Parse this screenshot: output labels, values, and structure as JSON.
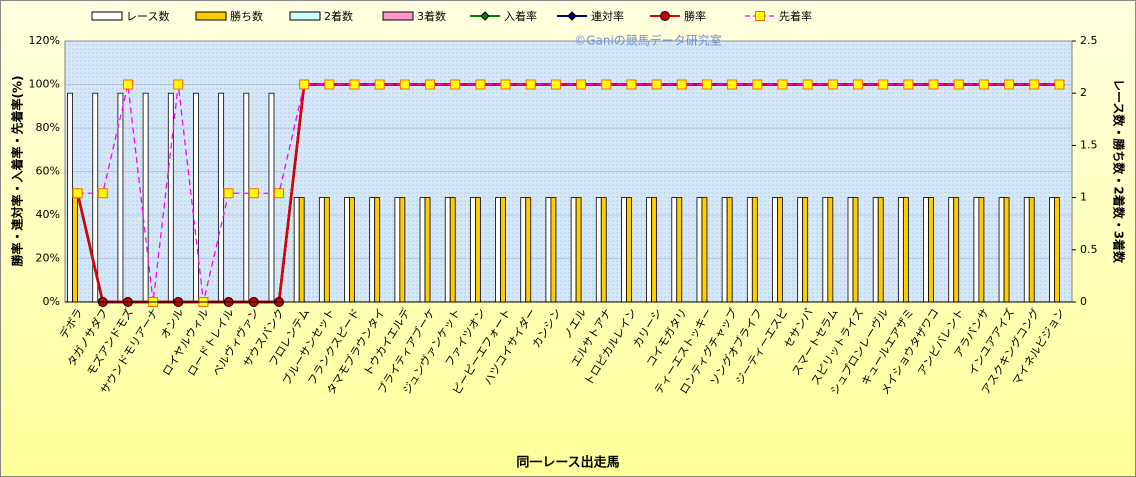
{
  "chart_data": {
    "type": "combo",
    "watermark": "©Ganiの競馬データ研究室",
    "ylabel": "勝率・連対率・入着率・先着率(%)",
    "y2label": "レース数・勝ち数・2着数・3着数",
    "xlabel": "同一レース出走馬",
    "categories": [
      "デボラ",
      "タガノサダフ",
      "モズアンドモズ",
      "サウンドモリアーナ",
      "オンル",
      "ロイヤルウィル",
      "ロードトレイル",
      "ベルヴィヴァン",
      "サウスバンク",
      "フロレンテム",
      "ブルーサンセット",
      "フランクスピード",
      "タマモブラウンタイ",
      "トウカイエルデ",
      "ブライティアブーケ",
      "ジュンヴァンケット",
      "ファイツオン",
      "ピーピーエフォート",
      "ハツコイサイダー",
      "カンシン",
      "ノエル",
      "エルサトアナ",
      "トロピカルレイン",
      "カリーシ",
      "コイモガタリ",
      "ティーエストッキー",
      "ロンティグチャップ",
      "ソングオブライフ",
      "ジーティーエスピ",
      "セサンパ",
      "スマートセラム",
      "スピリットライズ",
      "シュプロンレーヴル",
      "キュールエアザミ",
      "メイショウタザワコ",
      "アンビバレント",
      "アラバンサ",
      "インユアアイズ",
      "アスクキングコング",
      "マイネルビジョン"
    ],
    "ylim": [
      0,
      120
    ],
    "yticks": [
      {
        "value": 0,
        "label": "0%"
      },
      {
        "value": 20,
        "label": "20%"
      },
      {
        "value": 40,
        "label": "40%"
      },
      {
        "value": 60,
        "label": "60%"
      },
      {
        "value": 80,
        "label": "80%"
      },
      {
        "value": 100,
        "label": "100%"
      },
      {
        "value": 120,
        "label": "120%"
      }
    ],
    "y2lim": [
      0,
      2.5
    ],
    "y2ticks": [
      0,
      0.5,
      1,
      1.5,
      2,
      2.5
    ],
    "grid": true,
    "series": [
      {
        "name": "レース数",
        "type": "bar",
        "axis": "y2",
        "color": "#ffffff",
        "values": [
          2,
          2,
          2,
          2,
          2,
          2,
          2,
          2,
          2,
          1,
          1,
          1,
          1,
          1,
          1,
          1,
          1,
          1,
          1,
          1,
          1,
          1,
          1,
          1,
          1,
          1,
          1,
          1,
          1,
          1,
          1,
          1,
          1,
          1,
          1,
          1,
          1,
          1,
          1,
          1
        ]
      },
      {
        "name": "勝ち数",
        "type": "bar",
        "axis": "y2",
        "color": "#ffcc00",
        "values": [
          1,
          0,
          0,
          0,
          0,
          0,
          0,
          0,
          0,
          1,
          1,
          1,
          1,
          1,
          1,
          1,
          1,
          1,
          1,
          1,
          1,
          1,
          1,
          1,
          1,
          1,
          1,
          1,
          1,
          1,
          1,
          1,
          1,
          1,
          1,
          1,
          1,
          1,
          1,
          1
        ]
      },
      {
        "name": "2着数",
        "type": "bar",
        "axis": "y2",
        "color": "#ccffff",
        "values": [
          0,
          0,
          0,
          0,
          0,
          0,
          0,
          0,
          0,
          0,
          0,
          0,
          0,
          0,
          0,
          0,
          0,
          0,
          0,
          0,
          0,
          0,
          0,
          0,
          0,
          0,
          0,
          0,
          0,
          0,
          0,
          0,
          0,
          0,
          0,
          0,
          0,
          0,
          0,
          0
        ]
      },
      {
        "name": "3着数",
        "type": "bar",
        "axis": "y2",
        "color": "#ff99cc",
        "values": [
          0,
          0,
          0,
          0,
          0,
          0,
          0,
          0,
          0,
          0,
          0,
          0,
          0,
          0,
          0,
          0,
          0,
          0,
          0,
          0,
          0,
          0,
          0,
          0,
          0,
          0,
          0,
          0,
          0,
          0,
          0,
          0,
          0,
          0,
          0,
          0,
          0,
          0,
          0,
          0
        ]
      },
      {
        "name": "入着率",
        "type": "line",
        "color": "#008000",
        "marker": "diamond",
        "marker_color": "#008000",
        "values": [
          50,
          0,
          0,
          0,
          0,
          0,
          0,
          0,
          0,
          100,
          100,
          100,
          100,
          100,
          100,
          100,
          100,
          100,
          100,
          100,
          100,
          100,
          100,
          100,
          100,
          100,
          100,
          100,
          100,
          100,
          100,
          100,
          100,
          100,
          100,
          100,
          100,
          100,
          100,
          100
        ]
      },
      {
        "name": "連対率",
        "type": "line",
        "color": "#000080",
        "marker": "diamond",
        "marker_color": "#000080",
        "values": [
          50,
          0,
          0,
          0,
          0,
          0,
          0,
          0,
          0,
          100,
          100,
          100,
          100,
          100,
          100,
          100,
          100,
          100,
          100,
          100,
          100,
          100,
          100,
          100,
          100,
          100,
          100,
          100,
          100,
          100,
          100,
          100,
          100,
          100,
          100,
          100,
          100,
          100,
          100,
          100
        ]
      },
      {
        "name": "勝率",
        "type": "line",
        "color": "#e00000",
        "marker": "circle",
        "marker_color": "#cc0000",
        "values": [
          50,
          0,
          0,
          0,
          0,
          0,
          0,
          0,
          0,
          100,
          100,
          100,
          100,
          100,
          100,
          100,
          100,
          100,
          100,
          100,
          100,
          100,
          100,
          100,
          100,
          100,
          100,
          100,
          100,
          100,
          100,
          100,
          100,
          100,
          100,
          100,
          100,
          100,
          100,
          100
        ]
      },
      {
        "name": "先着率",
        "type": "line",
        "color": "#ff00ff",
        "dash": true,
        "marker": "square",
        "marker_color": "#ffff00",
        "values": [
          50,
          50,
          100,
          0,
          100,
          0,
          50,
          50,
          50,
          100,
          100,
          100,
          100,
          100,
          100,
          100,
          100,
          100,
          100,
          100,
          100,
          100,
          100,
          100,
          100,
          100,
          100,
          100,
          100,
          100,
          100,
          100,
          100,
          100,
          100,
          100,
          100,
          100,
          100,
          100
        ]
      }
    ]
  }
}
